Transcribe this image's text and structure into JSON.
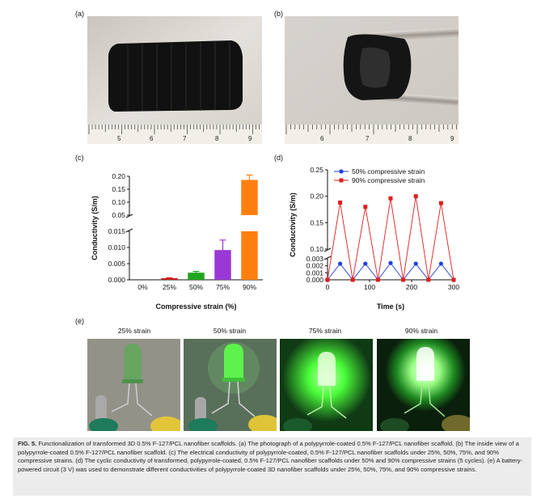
{
  "panels": {
    "a": {
      "label": "(a)",
      "ruler_numbers": [
        "5",
        "6",
        "7",
        "8",
        "9"
      ]
    },
    "b": {
      "label": "(b)",
      "ruler_numbers": [
        "6",
        "7",
        "8",
        "9"
      ]
    },
    "c": {
      "label": "(c)"
    },
    "d": {
      "label": "(d)"
    },
    "e": {
      "label": "(e)",
      "strain_labels": [
        "25% strain",
        "50% strain",
        "75% strain",
        "90% strain"
      ]
    }
  },
  "chart_data": [
    {
      "type": "bar",
      "panel": "c",
      "categories": [
        "0%",
        "25%",
        "50%",
        "75%",
        "90%"
      ],
      "values": [
        0.0,
        0.0005,
        0.0022,
        0.0092,
        0.186
      ],
      "errors": [
        0.0,
        0.0001,
        0.0004,
        0.0031,
        0.019
      ],
      "colors": [
        "#cc2020",
        "#cc2020",
        "#1fa51f",
        "#9a38d6",
        "#ff7f0e"
      ],
      "xlabel": "Compressive strain (%)",
      "ylabel": "Conductivity (S/m)",
      "axis_break": true,
      "upper_ylim": [
        0.05,
        0.2
      ],
      "upper_ticks": [
        "0.05",
        "0.10",
        "0.15",
        "0.20"
      ],
      "lower_ylim": [
        0,
        0.015
      ],
      "lower_ticks": [
        "0.000",
        "0.005",
        "0.010",
        "0.015"
      ]
    },
    {
      "type": "line",
      "panel": "d",
      "xlabel": "Time (s)",
      "ylabel": "Conductivity (S/m)",
      "xlim": [
        0,
        300
      ],
      "x_ticks": [
        "0",
        "100",
        "200",
        "300"
      ],
      "axis_break": true,
      "upper_ylim": [
        0.1,
        0.25
      ],
      "upper_ticks": [
        "0.10",
        "0.15",
        "0.20",
        "0.25"
      ],
      "lower_ylim": [
        0,
        0.003
      ],
      "lower_ticks": [
        "0.000",
        "0.001",
        "0.002",
        "0.003"
      ],
      "legend_position": "top-left",
      "series": [
        {
          "name": "50% compressive strain",
          "color": "#1f3fe0",
          "marker": "circle",
          "x": [
            0,
            30,
            60,
            90,
            120,
            150,
            180,
            210,
            240,
            270,
            300
          ],
          "y": [
            0.0,
            0.0023,
            0.0,
            0.0023,
            0.0,
            0.0024,
            0.0,
            0.0023,
            0.0,
            0.0023,
            0.0
          ]
        },
        {
          "name": "90% compressive strain",
          "color": "#e01f1f",
          "marker": "square",
          "x": [
            0,
            30,
            60,
            90,
            120,
            150,
            180,
            210,
            240,
            270,
            300
          ],
          "y": [
            0.0,
            0.188,
            0.0,
            0.18,
            0.0,
            0.196,
            0.0,
            0.2,
            0.0,
            0.187,
            0.0
          ]
        }
      ]
    }
  ],
  "caption": {
    "bold": "FIG. 5.",
    "text": " Functionalization of transformed 3D 0.5% F-127/PCL nanofiber scaffolds. (a) The photograph of a polypyrrole-coated 0.5% F-127/PCL nanofiber scaffold. (b) The inside view of a polypyrrole-coated 0.5% F-127/PCL nanofiber scaffold. (c) The electrical conductivity of polypyrrole-coated, 0.5% F-127/PCL nanofiber scaffolds under 25%, 50%, 75%, and 90% compressive strains. (d) The cyclic conductivity of transformed, polypyrrole-coated, 0.5% F-127/PCL nanofiber scaffolds under 50% and 90% compressive strains (5 cycles). (e) A battery-powered circuit (3 V) was used to demonstrate different conductivities of polypyrrole-coated 3D nanofiber scaffolds under 25%, 50%, 75%, and 90% compressive strains."
  }
}
